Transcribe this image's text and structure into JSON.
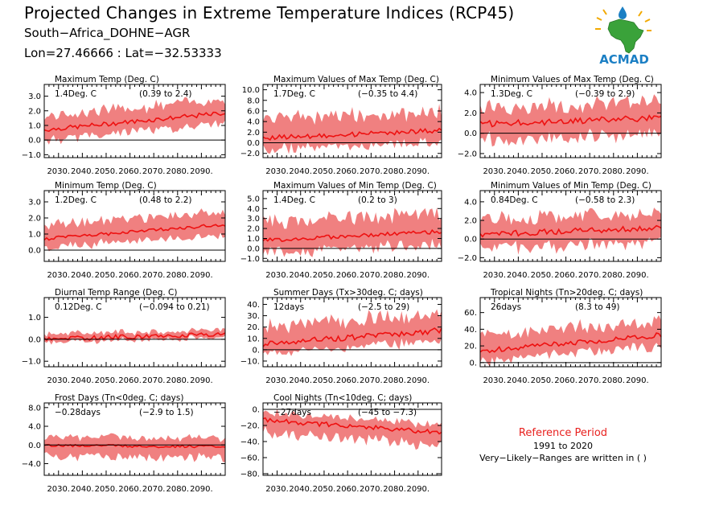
{
  "header": {
    "title": "Projected Changes in Extreme Temperature Indices (RCP45)",
    "location": "South−Africa_DOHNE−AGR",
    "coords": "Lon=27.46666 : Lat=−32.53333"
  },
  "logo": {
    "text": "ACMAD",
    "icon": "africa-map-logo",
    "color": "#1b7fc4"
  },
  "reference": {
    "title": "Reference Period",
    "years": "1991 to 2020",
    "note": "Very−Likely−Ranges are written in ( )"
  },
  "style": {
    "band_color": "#f08080",
    "line_color": "#ee1111",
    "zero_line_color": "#000000"
  },
  "chart_data": [
    {
      "type": "area",
      "title": "Maximum Temp (Deg. C)",
      "mean": "1.4Deg. C",
      "range": "(0.39 to 2.4)",
      "ylim": [
        -1.2,
        3.8
      ],
      "yticks": [
        -1.0,
        0.0,
        1.0,
        2.0,
        3.0
      ],
      "ytick_labels": [
        "−1.0",
        "0.0",
        "1.0",
        "2.0",
        "3.0"
      ],
      "xlim": [
        2024,
        2100
      ],
      "xticks": [
        2030,
        2040,
        2050,
        2060,
        2070,
        2080,
        2090
      ],
      "xtick_labels": [
        "2030.",
        "2040.",
        "2050.",
        "2060.",
        "2070.",
        "2080.",
        "2090."
      ],
      "x": [
        2024,
        2100
      ],
      "start": 0.7,
      "end": 1.85,
      "low_offset": 0.7,
      "high_offset": 0.95,
      "noise": 0.15
    },
    {
      "type": "area",
      "title": "Maximum Values of Max Temp (Deg. C)",
      "mean": "1.7Deg. C",
      "range": "(−0.35 to 4.4)",
      "ylim": [
        -2.8,
        11.0
      ],
      "yticks": [
        -2.0,
        0.0,
        2.0,
        4.0,
        6.0,
        8.0,
        10.0
      ],
      "ytick_labels": [
        "−2.0",
        "0.0",
        "2.0",
        "4.0",
        "6.0",
        "8.0",
        "10.0"
      ],
      "xlim": [
        2024,
        2100
      ],
      "xticks": [
        2030,
        2040,
        2050,
        2060,
        2070,
        2080,
        2090
      ],
      "xtick_labels": [
        "2030.",
        "2040.",
        "2050.",
        "2060.",
        "2070.",
        "2080.",
        "2090."
      ],
      "x": [
        2024,
        2100
      ],
      "start": 0.9,
      "end": 2.3,
      "low_offset": 2.2,
      "high_offset": 3.5,
      "noise": 0.45
    },
    {
      "type": "area",
      "title": "Minimum Values of Max Temp (Deg. C)",
      "mean": "1.3Deg. C",
      "range": "(−0.39 to 2.9)",
      "ylim": [
        -2.4,
        4.8
      ],
      "yticks": [
        -2.0,
        0.0,
        2.0,
        4.0
      ],
      "ytick_labels": [
        "−2.0",
        "0.0",
        "2.0",
        "4.0"
      ],
      "xlim": [
        2024,
        2100
      ],
      "xticks": [
        2030,
        2040,
        2050,
        2060,
        2070,
        2080,
        2090
      ],
      "xtick_labels": [
        "2030.",
        "2040.",
        "2050.",
        "2060.",
        "2070.",
        "2080.",
        "2090."
      ],
      "x": [
        2024,
        2100
      ],
      "start": 0.9,
      "end": 1.5,
      "low_offset": 1.6,
      "high_offset": 1.6,
      "noise": 0.3
    },
    {
      "type": "area",
      "title": "Minimum Temp (Deg. C)",
      "mean": "1.2Deg. C",
      "range": "(0.48 to 2.2)",
      "ylim": [
        -0.7,
        3.7
      ],
      "yticks": [
        0.0,
        1.0,
        2.0,
        3.0
      ],
      "ytick_labels": [
        "0.0",
        "1.0",
        "2.0",
        "3.0"
      ],
      "xlim": [
        2024,
        2100
      ],
      "xticks": [
        2030,
        2040,
        2050,
        2060,
        2070,
        2080,
        2090
      ],
      "xtick_labels": [
        "2030.",
        "2040.",
        "2050.",
        "2060.",
        "2070.",
        "2080.",
        "2090."
      ],
      "x": [
        2024,
        2100
      ],
      "start": 0.7,
      "end": 1.6,
      "low_offset": 0.6,
      "high_offset": 0.8,
      "noise": 0.1
    },
    {
      "type": "area",
      "title": "Maximum Values of Min Temp (Deg. C)",
      "mean": "1.4Deg. C",
      "range": "(0.2 to 3)",
      "ylim": [
        -1.3,
        5.8
      ],
      "yticks": [
        -1.0,
        0.0,
        1.0,
        2.0,
        3.0,
        4.0,
        5.0
      ],
      "ytick_labels": [
        "−1.0",
        "0.0",
        "1.0",
        "2.0",
        "3.0",
        "4.0",
        "5.0"
      ],
      "xlim": [
        2024,
        2100
      ],
      "xticks": [
        2030,
        2040,
        2050,
        2060,
        2070,
        2080,
        2090
      ],
      "xtick_labels": [
        "2030.",
        "2040.",
        "2050.",
        "2060.",
        "2070.",
        "2080.",
        "2090."
      ],
      "x": [
        2024,
        2100
      ],
      "start": 0.8,
      "end": 1.7,
      "low_offset": 1.3,
      "high_offset": 1.8,
      "noise": 0.2
    },
    {
      "type": "area",
      "title": "Minimum Values of Min Temp (Deg. C)",
      "mean": "0.84Deg. C",
      "range": "(−0.58 to 2.3)",
      "ylim": [
        -2.4,
        5.2
      ],
      "yticks": [
        -2.0,
        0.0,
        2.0,
        4.0
      ],
      "ytick_labels": [
        "−2.0",
        "0.0",
        "2.0",
        "4.0"
      ],
      "xlim": [
        2024,
        2100
      ],
      "xticks": [
        2030,
        2040,
        2050,
        2060,
        2070,
        2080,
        2090
      ],
      "xtick_labels": [
        "2030.",
        "2040.",
        "2050.",
        "2060.",
        "2070.",
        "2080.",
        "2090."
      ],
      "x": [
        2024,
        2100
      ],
      "start": 0.5,
      "end": 1.2,
      "low_offset": 1.5,
      "high_offset": 1.6,
      "noise": 0.3
    },
    {
      "type": "area",
      "title": "Diurnal Temp Range (Deg. C)",
      "mean": "0.12Deg. C",
      "range": "(−0.094 to 0.21)",
      "ylim": [
        -1.25,
        1.9
      ],
      "yticks": [
        -1.0,
        0.0,
        1.0
      ],
      "ytick_labels": [
        "−1.0",
        "0.0",
        "1.0"
      ],
      "xlim": [
        2024,
        2100
      ],
      "xticks": [
        2030,
        2040,
        2050,
        2060,
        2070,
        2080,
        2090
      ],
      "xtick_labels": [
        "2030.",
        "2040.",
        "2050.",
        "2060.",
        "2070.",
        "2080.",
        "2090."
      ],
      "x": [
        2024,
        2100
      ],
      "start": 0.0,
      "end": 0.25,
      "low_offset": 0.15,
      "high_offset": 0.2,
      "noise": 0.1
    },
    {
      "type": "area",
      "title": "Summer Days (Tx>30deg. C; days)",
      "mean": "12days",
      "range": "(−2.5 to 29)",
      "ylim": [
        -15,
        46
      ],
      "yticks": [
        -10,
        0,
        10,
        20,
        30,
        40
      ],
      "ytick_labels": [
        "−10.",
        "0.",
        "10.",
        "20.",
        "30.",
        "40."
      ],
      "xlim": [
        2024,
        2100
      ],
      "xticks": [
        2030,
        2040,
        2050,
        2060,
        2070,
        2080,
        2090
      ],
      "xtick_labels": [
        "2030.",
        "2040.",
        "2050.",
        "2060.",
        "2070.",
        "2080.",
        "2090."
      ],
      "x": [
        2024,
        2100
      ],
      "start": 5,
      "end": 17,
      "low_offset": 9,
      "high_offset": 15,
      "noise": 2.5
    },
    {
      "type": "area",
      "title": "Tropical Nights (Tn>20deg. C; days)",
      "mean": "26days",
      "range": "(8.3 to 49)",
      "ylim": [
        -5,
        78
      ],
      "yticks": [
        0,
        20,
        40,
        60
      ],
      "ytick_labels": [
        "0.",
        "20.",
        "40.",
        "60."
      ],
      "xlim": [
        2024,
        2100
      ],
      "xticks": [
        2030,
        2040,
        2050,
        2060,
        2070,
        2080,
        2090
      ],
      "xtick_labels": [
        "2030.",
        "2040.",
        "2050.",
        "2060.",
        "2070.",
        "2080.",
        "2090."
      ],
      "x": [
        2024,
        2100
      ],
      "start": 14,
      "end": 33,
      "low_offset": 12,
      "high_offset": 18,
      "noise": 3
    },
    {
      "type": "area",
      "title": "Frost Days (Tn<0deg. C; days)",
      "mean": "−0.28days",
      "range": "(−2.9 to 1.5)",
      "ylim": [
        -6.5,
        9
      ],
      "yticks": [
        -4.0,
        0.0,
        4.0,
        8.0
      ],
      "ytick_labels": [
        "−4.0",
        "0.0",
        "4.0",
        "8.0"
      ],
      "xlim": [
        2024,
        2100
      ],
      "xticks": [
        2030,
        2040,
        2050,
        2060,
        2070,
        2080,
        2090
      ],
      "xtick_labels": [
        "2030.",
        "2040.",
        "2050.",
        "2060.",
        "2070.",
        "2080.",
        "2090."
      ],
      "x": [
        2024,
        2100
      ],
      "start": -0.1,
      "end": -0.4,
      "low_offset": 2.4,
      "high_offset": 1.8,
      "noise": 0.3
    },
    {
      "type": "area",
      "title": "Cool Nights (Tn<10deg. C; days)",
      "mean": "−27days",
      "range": "(−45 to −7.3)",
      "ylim": [
        -82,
        8
      ],
      "yticks": [
        -80,
        -60,
        -40,
        -20,
        0
      ],
      "ytick_labels": [
        "−80.",
        "−60.",
        "−40.",
        "−20.",
        "0."
      ],
      "xlim": [
        2024,
        2100
      ],
      "xticks": [
        2030,
        2040,
        2050,
        2060,
        2070,
        2080,
        2090
      ],
      "xtick_labels": [
        "2030.",
        "2040.",
        "2050.",
        "2060.",
        "2070.",
        "2080.",
        "2090."
      ],
      "x": [
        2024,
        2100
      ],
      "start": -13,
      "end": -29,
      "low_offset": 16,
      "high_offset": 10,
      "noise": 3
    }
  ]
}
